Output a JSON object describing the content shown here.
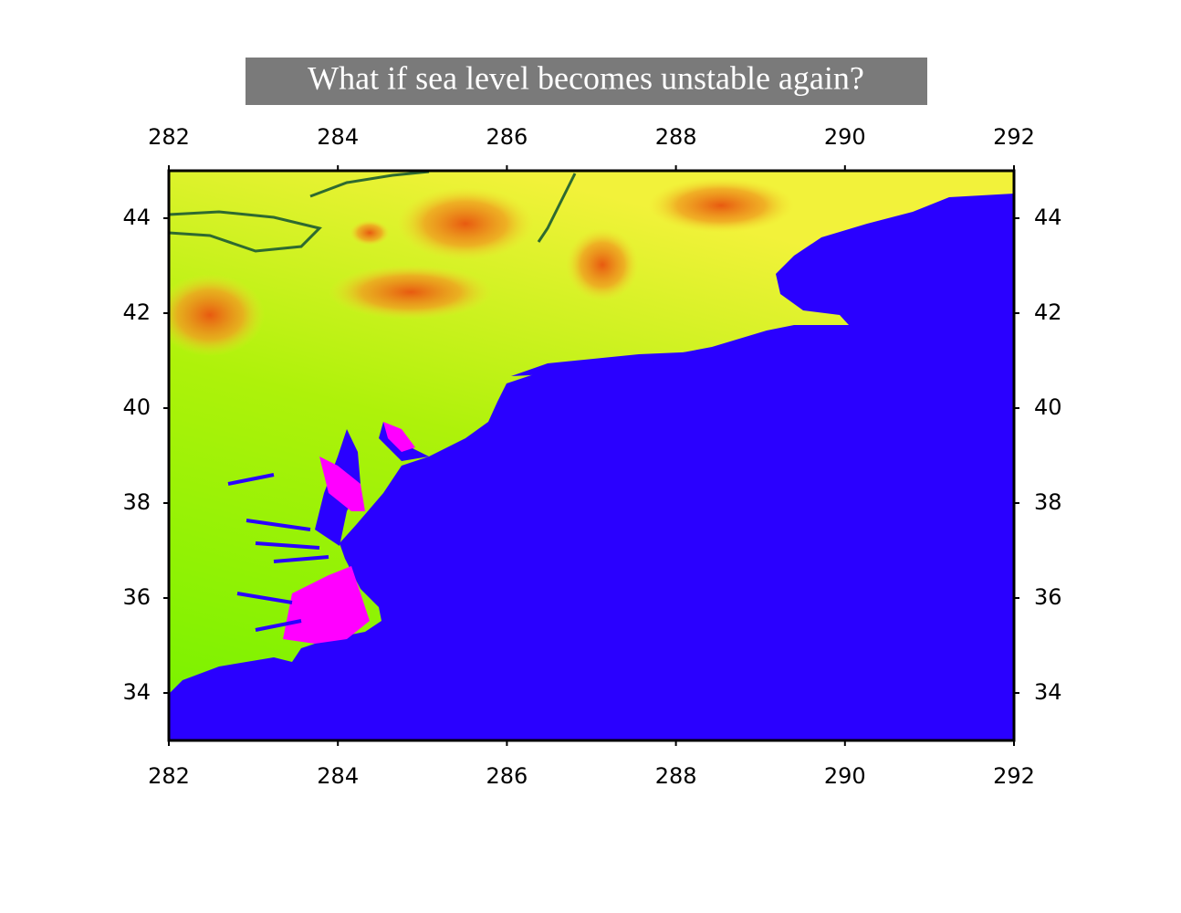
{
  "map": {
    "title": "What if sea level becomes unstable again?",
    "xlim": [
      282,
      292
    ],
    "ylim": [
      33,
      45
    ],
    "xticks": [
      282,
      284,
      286,
      288,
      290,
      292
    ],
    "yticks": [
      34,
      36,
      38,
      40,
      42,
      44
    ]
  }
}
